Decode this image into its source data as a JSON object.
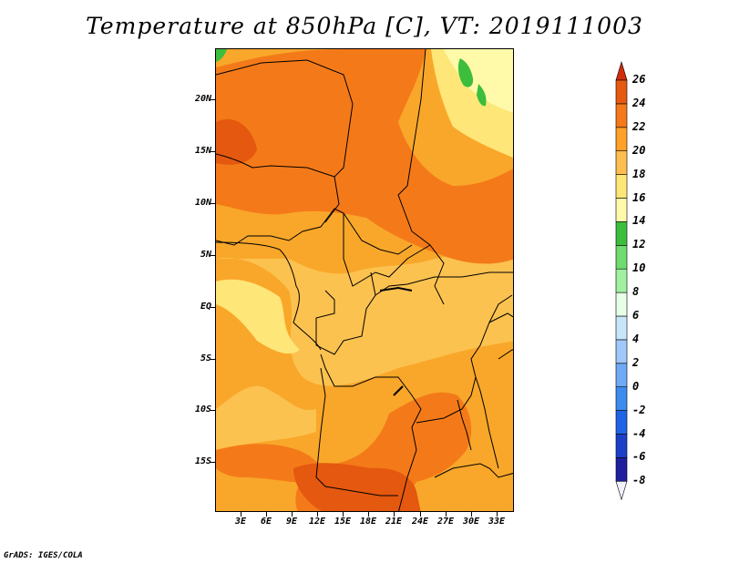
{
  "title": "Temperature at 850hPa [C], VT: 2019111003",
  "footer": "GrADS: IGES/COLA",
  "map": {
    "variable": "Temperature at 850hPa",
    "units": "C",
    "valid_time": "2019111003",
    "lon_range": [
      0,
      35
    ],
    "lat_range": [
      -20,
      24.5
    ],
    "lat_ticks": [
      "20N",
      "15N",
      "10N",
      "5N",
      "EQ",
      "5S",
      "10S",
      "15S"
    ],
    "lon_ticks": [
      "3E",
      "6E",
      "9E",
      "12E",
      "15E",
      "18E",
      "21E",
      "24E",
      "27E",
      "30E",
      "33E"
    ],
    "legend_levels": [
      "26",
      "24",
      "22",
      "20",
      "18",
      "16",
      "14",
      "12",
      "10",
      "8",
      "6",
      "4",
      "2",
      "0",
      "-2",
      "-4",
      "-6",
      "-8"
    ],
    "legend_colors": [
      "#f0f0ff",
      "#1e1e9e",
      "#1c3fc8",
      "#1e64e6",
      "#3c8cf0",
      "#6eaaf5",
      "#a0c8fa",
      "#c8e6fa",
      "#e6ffe6",
      "#a0f0a0",
      "#6edc6e",
      "#3cbe3c",
      "#fffaaa",
      "#ffe678",
      "#ffbe50",
      "#ffa028",
      "#f57819",
      "#e65a0f",
      "#d22d0a"
    ],
    "colors": {
      "t16_18": "#ffe678",
      "t18_20": "#fcc24f",
      "t20_22": "#f9a72a",
      "t22_24": "#f47a19",
      "t24_26": "#e4580f",
      "t14_16": "#fffaaa",
      "t12_14": "#3cbe3c"
    }
  }
}
